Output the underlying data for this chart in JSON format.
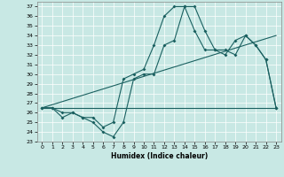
{
  "xlabel": "Humidex (Indice chaleur)",
  "xlim": [
    -0.5,
    23.5
  ],
  "ylim": [
    23,
    37.5
  ],
  "yticks": [
    23,
    24,
    25,
    26,
    27,
    28,
    29,
    30,
    31,
    32,
    33,
    34,
    35,
    36,
    37
  ],
  "xticks": [
    0,
    1,
    2,
    3,
    4,
    5,
    6,
    7,
    8,
    9,
    10,
    11,
    12,
    13,
    14,
    15,
    16,
    17,
    18,
    19,
    20,
    21,
    22,
    23
  ],
  "bg_color": "#c8e8e4",
  "line_color": "#1a6060",
  "curve1_x": [
    0,
    1,
    2,
    3,
    4,
    5,
    6,
    7,
    8,
    9,
    10,
    11,
    12,
    13,
    14,
    15,
    16,
    17,
    18,
    19,
    20,
    21,
    22,
    23
  ],
  "curve1_y": [
    26.5,
    26.5,
    26.0,
    26.0,
    25.5,
    25.0,
    24.0,
    23.5,
    25.0,
    29.5,
    30.0,
    30.0,
    33.0,
    33.5,
    37.0,
    37.0,
    34.5,
    32.5,
    32.5,
    32.0,
    34.0,
    33.0,
    31.5,
    26.5
  ],
  "curve2_x": [
    0,
    1,
    2,
    3,
    4,
    5,
    6,
    7,
    8,
    9,
    10,
    11,
    12,
    13,
    14,
    15,
    16,
    17,
    18,
    19,
    20,
    21,
    22,
    23
  ],
  "curve2_y": [
    26.5,
    26.5,
    25.5,
    26.0,
    25.5,
    25.5,
    24.5,
    25.0,
    29.5,
    30.0,
    30.5,
    33.0,
    36.0,
    37.0,
    37.0,
    34.5,
    32.5,
    32.5,
    32.0,
    33.5,
    34.0,
    33.0,
    31.5,
    26.5
  ],
  "line1_x": [
    0,
    23
  ],
  "line1_y": [
    26.5,
    26.5
  ],
  "line2_x": [
    0,
    23
  ],
  "line2_y": [
    26.5,
    34.0
  ]
}
